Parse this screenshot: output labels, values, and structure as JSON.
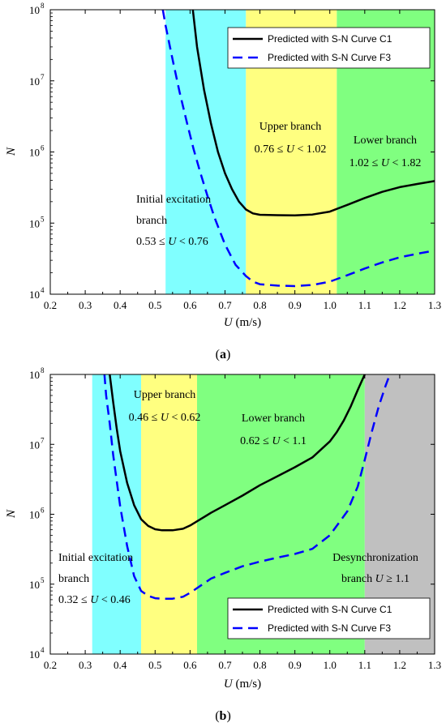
{
  "chart_data": [
    {
      "type": "line",
      "caption": "(a)",
      "caption_parts": [
        "(",
        "a",
        ")"
      ],
      "xlabel": "U (m/s)",
      "xlabel_var": "U",
      "xlabel_unit": "(m/s)",
      "ylabel": "N",
      "xlim": [
        0.2,
        1.3
      ],
      "ylim": [
        10000,
        100000000
      ],
      "yscale": "log",
      "x_ticks": [
        0.2,
        0.3,
        0.4,
        0.5,
        0.6,
        0.7,
        0.8,
        0.9,
        1.0,
        1.1,
        1.2,
        1.3
      ],
      "x_tick_labels": [
        "0.2",
        "0.3",
        "0.4",
        "0.5",
        "0.6",
        "0.7",
        "0.8",
        "0.9",
        "1.0",
        "1.1",
        "1.2",
        "1.3"
      ],
      "y_ticks": [
        10000,
        100000,
        1000000,
        10000000,
        100000000
      ],
      "y_tick_labels": [
        [
          "10",
          "4"
        ],
        [
          "10",
          "5"
        ],
        [
          "10",
          "6"
        ],
        [
          "10",
          "7"
        ],
        [
          "10",
          "8"
        ]
      ],
      "legend_position": "top-right",
      "regions": [
        {
          "x0": 0.53,
          "x1": 0.76,
          "color": "#80ffff"
        },
        {
          "x0": 0.76,
          "x1": 1.02,
          "color": "#ffff80"
        },
        {
          "x0": 1.02,
          "x1": 1.3,
          "color": "#80ff80"
        }
      ],
      "annotations": [
        {
          "lines": [
            [
              {
                "t": "Initial excitation",
                "i": false
              }
            ],
            [
              {
                "t": "branch",
                "i": false
              }
            ],
            [
              {
                "t": "0.53 ≤ ",
                "i": false
              },
              {
                "t": "U",
                "i": true
              },
              {
                "t": " < 0.76",
                "i": false
              }
            ]
          ]
        },
        {
          "lines": [
            [
              {
                "t": "Upper branch",
                "i": false
              }
            ],
            [
              {
                "t": "0.76 ≤ ",
                "i": false
              },
              {
                "t": "U",
                "i": true
              },
              {
                "t": " < 1.02",
                "i": false
              }
            ]
          ]
        },
        {
          "lines": [
            [
              {
                "t": "Lower branch",
                "i": false
              }
            ],
            [
              {
                "t": "1.02 ≤ ",
                "i": false
              },
              {
                "t": "U",
                "i": true
              },
              {
                "t": " < 1.82",
                "i": false
              }
            ]
          ]
        }
      ],
      "series": [
        {
          "name": "Predicted with S-N Curve C1",
          "color": "#000000",
          "style": "solid",
          "x": [
            0.608,
            0.62,
            0.64,
            0.66,
            0.68,
            0.7,
            0.72,
            0.74,
            0.76,
            0.78,
            0.8,
            0.85,
            0.9,
            0.95,
            1.0,
            1.05,
            1.1,
            1.15,
            1.2,
            1.25,
            1.3
          ],
          "y": [
            100000000,
            30000000,
            7500000,
            2500000,
            1000000,
            500000,
            300000,
            200000,
            155000,
            137000,
            131000,
            129000,
            128000,
            132000,
            145000,
            180000,
            225000,
            275000,
            320000,
            355000,
            390000
          ]
        },
        {
          "name": "Predicted with S-N Curve F3",
          "color": "#0000ff",
          "style": "dashed",
          "x": [
            0.522,
            0.53,
            0.55,
            0.57,
            0.59,
            0.61,
            0.63,
            0.65,
            0.67,
            0.7,
            0.73,
            0.76,
            0.78,
            0.8,
            0.85,
            0.9,
            0.95,
            1.0,
            1.05,
            1.1,
            1.15,
            1.2,
            1.25,
            1.3
          ],
          "y": [
            100000000,
            60000000,
            20000000,
            7000000,
            2700000,
            1100000,
            500000,
            240000,
            120000,
            50000,
            26000,
            18000,
            15000,
            13800,
            13200,
            13000,
            13500,
            15000,
            18500,
            23000,
            28000,
            33000,
            37000,
            41000
          ]
        }
      ]
    },
    {
      "type": "line",
      "caption": "(b)",
      "caption_parts": [
        "(",
        "b",
        ")"
      ],
      "xlabel": "U (m/s)",
      "xlabel_var": "U",
      "xlabel_unit": "(m/s)",
      "ylabel": "N",
      "xlim": [
        0.2,
        1.3
      ],
      "ylim": [
        10000,
        100000000
      ],
      "yscale": "log",
      "x_ticks": [
        0.2,
        0.3,
        0.4,
        0.5,
        0.6,
        0.7,
        0.8,
        0.9,
        1.0,
        1.1,
        1.2,
        1.3
      ],
      "x_tick_labels": [
        "0.2",
        "0.3",
        "0.4",
        "0.5",
        "0.6",
        "0.7",
        "0.8",
        "0.9",
        "1.0",
        "1.1",
        "1.2",
        "1.3"
      ],
      "y_ticks": [
        10000,
        100000,
        1000000,
        10000000,
        100000000
      ],
      "y_tick_labels": [
        [
          "10",
          "4"
        ],
        [
          "10",
          "5"
        ],
        [
          "10",
          "6"
        ],
        [
          "10",
          "7"
        ],
        [
          "10",
          "8"
        ]
      ],
      "legend_position": "bottom-right",
      "regions": [
        {
          "x0": 0.32,
          "x1": 0.46,
          "color": "#80ffff"
        },
        {
          "x0": 0.46,
          "x1": 0.62,
          "color": "#ffff80"
        },
        {
          "x0": 0.62,
          "x1": 1.1,
          "color": "#80ff80"
        },
        {
          "x0": 1.1,
          "x1": 1.3,
          "color": "#c0c0c0"
        }
      ],
      "annotations": [
        {
          "lines": [
            [
              {
                "t": "Initial excitation",
                "i": false
              }
            ],
            [
              {
                "t": "branch",
                "i": false
              }
            ],
            [
              {
                "t": "0.32 ≤ ",
                "i": false
              },
              {
                "t": "U",
                "i": true
              },
              {
                "t": " < 0.46",
                "i": false
              }
            ]
          ]
        },
        {
          "lines": [
            [
              {
                "t": "Upper branch",
                "i": false
              }
            ],
            [
              {
                "t": "0.46 ≤ ",
                "i": false
              },
              {
                "t": "U",
                "i": true
              },
              {
                "t": " < 0.62",
                "i": false
              }
            ]
          ]
        },
        {
          "lines": [
            [
              {
                "t": "Lower branch",
                "i": false
              }
            ],
            [
              {
                "t": "0.62 ≤ ",
                "i": false
              },
              {
                "t": "U",
                "i": true
              },
              {
                "t": " < 1.1",
                "i": false
              }
            ]
          ]
        },
        {
          "lines": [
            [
              {
                "t": "Desynchronization",
                "i": false
              }
            ],
            [
              {
                "t": "branch",
                "i": false
              },
              {
                "t": "    ",
                "i": false
              },
              {
                "t": "U",
                "i": true
              },
              {
                "t": " ≥ 1.1",
                "i": false
              }
            ]
          ]
        }
      ],
      "series": [
        {
          "name": "Predicted with S-N Curve C1",
          "color": "#000000",
          "style": "solid",
          "x": [
            0.37,
            0.38,
            0.39,
            0.4,
            0.42,
            0.44,
            0.46,
            0.48,
            0.5,
            0.52,
            0.55,
            0.58,
            0.6,
            0.63,
            0.66,
            0.7,
            0.75,
            0.8,
            0.85,
            0.9,
            0.95,
            1.0,
            1.02,
            1.04,
            1.06,
            1.08,
            1.1
          ],
          "y": [
            100000000,
            40000000,
            17000000,
            8000000,
            2800000,
            1350000,
            850000,
            680000,
            610000,
            590000,
            590000,
            620000,
            690000,
            850000,
            1050000,
            1350000,
            1850000,
            2600000,
            3500000,
            4700000,
            6500000,
            11000000,
            15000000,
            22000000,
            35000000,
            60000000,
            100000000
          ]
        },
        {
          "name": "Predicted with S-N Curve F3",
          "color": "#0000ff",
          "style": "dashed",
          "x": [
            0.355,
            0.36,
            0.37,
            0.38,
            0.4,
            0.42,
            0.44,
            0.46,
            0.48,
            0.5,
            0.52,
            0.55,
            0.58,
            0.6,
            0.63,
            0.66,
            0.7,
            0.75,
            0.8,
            0.85,
            0.9,
            0.95,
            1.0,
            1.05,
            1.08,
            1.1,
            1.12,
            1.14,
            1.16,
            1.17
          ],
          "y": [
            100000000,
            50000000,
            20000000,
            7000000,
            1300000,
            350000,
            130000,
            80000,
            68000,
            63000,
            62000,
            62000,
            66000,
            75000,
            95000,
            120000,
            145000,
            180000,
            210000,
            240000,
            270000,
            320000,
            500000,
            1100000,
            2500000,
            6000000,
            15000000,
            35000000,
            70000000,
            95000000
          ]
        }
      ]
    }
  ]
}
